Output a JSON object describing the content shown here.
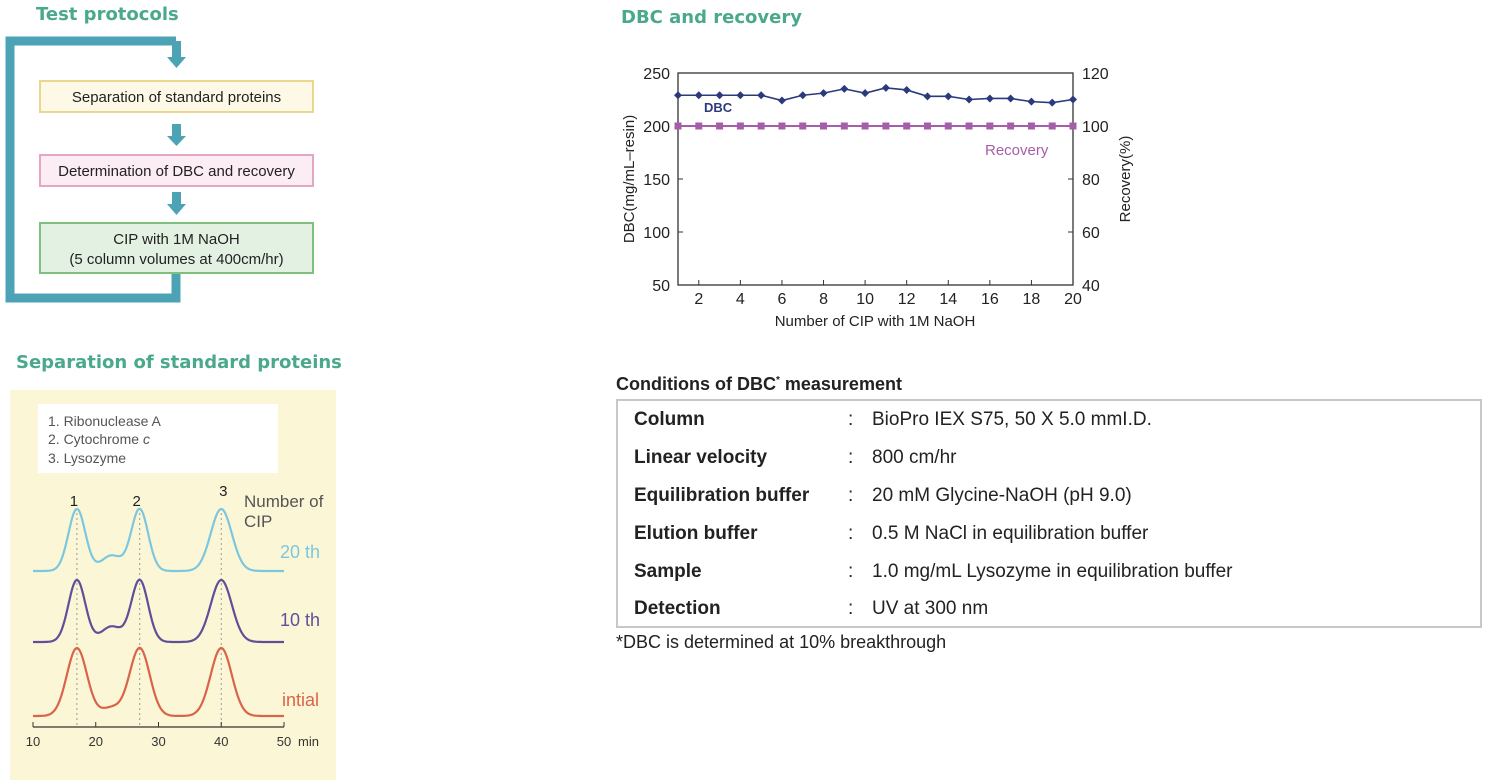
{
  "titles": {
    "test_protocols": "Test protocols",
    "dbc_recovery": "DBC and recovery",
    "separation": "Separation of standard proteins",
    "conditions_prefix": "Conditions of DBC",
    "conditions_mark": "*",
    "conditions_suffix": " measurement"
  },
  "flow": {
    "step1": "Separation of standard proteins",
    "step2": "Determination of DBC and recovery",
    "step3_line1": "CIP with 1M NaOH",
    "step3_line2": "(5 column volumes at 400cm/hr)"
  },
  "colors": {
    "title_green": "#4aa88c",
    "loop_teal": "#4ba3b5",
    "step1_fill": "#fdf9e6",
    "step1_border": "#e9d78f",
    "step2_fill": "#fbedf3",
    "step2_border": "#e4a6c2",
    "step3_fill": "#e3f1e3",
    "step3_border": "#7fc07f",
    "dbc_line": "#2b3a7c",
    "recovery_line": "#a55ea8",
    "chromo_bg": "#fbf7d6",
    "trace_20th": "#7cc7df",
    "trace_10th": "#5f4f98",
    "trace_initial": "#d9644a"
  },
  "chart_data": [
    {
      "type": "line",
      "title": "DBC and recovery",
      "xlabel": "Number of CIP with 1M NaOH",
      "ylabel": "DBC(mg/mL–resin)",
      "y2label": "Recovery(%)",
      "xlim": [
        1,
        20
      ],
      "ylim": [
        50,
        250
      ],
      "y2lim": [
        40,
        120
      ],
      "x_ticks": [
        2,
        4,
        6,
        8,
        10,
        12,
        14,
        16,
        18,
        20
      ],
      "y_ticks": [
        50,
        100,
        150,
        200,
        250
      ],
      "y2_ticks": [
        40,
        60,
        80,
        100,
        120
      ],
      "x": [
        1,
        2,
        3,
        4,
        5,
        6,
        7,
        8,
        9,
        10,
        11,
        12,
        13,
        14,
        15,
        16,
        17,
        18,
        19,
        20
      ],
      "series": [
        {
          "name": "DBC",
          "axis": "left",
          "marker": "diamond",
          "values": [
            229,
            229,
            229,
            229,
            229,
            224,
            229,
            231,
            235,
            231,
            236,
            234,
            228,
            228,
            225,
            226,
            226,
            223,
            222,
            225
          ]
        },
        {
          "name": "Recovery",
          "axis": "right",
          "marker": "square",
          "values": [
            100,
            100,
            100,
            100,
            100,
            100,
            100,
            100,
            100,
            100,
            100,
            100,
            100,
            100,
            100,
            100,
            100,
            100,
            100,
            100
          ]
        }
      ],
      "grid": false
    },
    {
      "type": "line",
      "title": "Separation of standard proteins",
      "xlabel": "min",
      "xlim": [
        10,
        50
      ],
      "x_ticks": [
        10,
        20,
        30,
        40,
        50
      ],
      "legend": [
        "1. Ribonuclease A",
        "2. Cytochrome ",
        "3. Lysozyme"
      ],
      "legend_italic": "c",
      "peak_labels": [
        "1",
        "2",
        "3"
      ],
      "peak_times": [
        17,
        27,
        40
      ],
      "cip_header_line1": "Number of",
      "cip_header_line2": "CIP",
      "series": [
        {
          "name": "20 th",
          "peaks": [
            {
              "t": 17,
              "h": 1.0
            },
            {
              "t": 22.5,
              "h": 0.25
            },
            {
              "t": 27,
              "h": 1.0
            },
            {
              "t": 40,
              "h": 1.0
            }
          ]
        },
        {
          "name": "10 th",
          "peaks": [
            {
              "t": 17,
              "h": 1.0
            },
            {
              "t": 22.5,
              "h": 0.25
            },
            {
              "t": 27,
              "h": 1.0
            },
            {
              "t": 40,
              "h": 1.0
            }
          ]
        },
        {
          "name": "intial",
          "peaks": [
            {
              "t": 17,
              "h": 1.0
            },
            {
              "t": 22.5,
              "h": 0.12
            },
            {
              "t": 27,
              "h": 1.0
            },
            {
              "t": 40,
              "h": 1.0
            }
          ]
        }
      ]
    }
  ],
  "conditions": {
    "separator": ":",
    "rows": [
      {
        "key": "Column",
        "value": "BioPro IEX S75, 50 X 5.0 mmI.D."
      },
      {
        "key": "Linear velocity",
        "value": "800 cm/hr"
      },
      {
        "key": "Equilibration buffer",
        "value": "20 mM Glycine-NaOH (pH 9.0)"
      },
      {
        "key": "Elution buffer",
        "value": "0.5 M NaCl in equilibration buffer"
      },
      {
        "key": "Sample",
        "value": "1.0 mg/mL Lysozyme in equilibration buffer"
      },
      {
        "key": "Detection",
        "value": "UV at 300 nm"
      }
    ],
    "footnote": "*DBC is determined at 10% breakthrough"
  }
}
